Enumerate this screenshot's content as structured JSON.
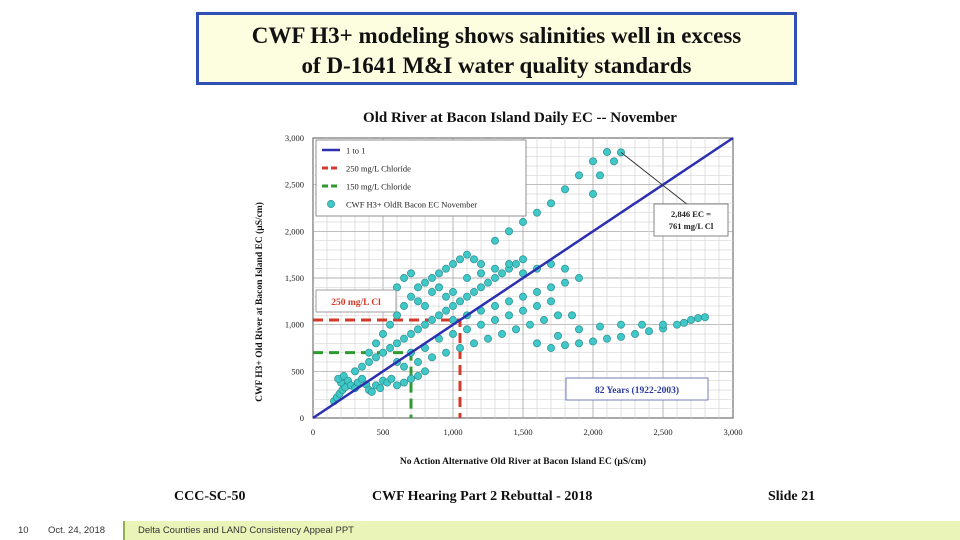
{
  "slide": {
    "title_line1": "CWF H3+ modeling shows salinities well in excess",
    "title_line2": "of D-1641 M&I water quality standards",
    "footer_left": "CCC-SC-50",
    "footer_center": "CWF Hearing Part 2 Rebuttal - 2018",
    "footer_right": "Slide 21",
    "page_number": "10",
    "date": "Oct. 24, 2018",
    "presentation": "Delta Counties and LAND Consistency Appeal PPT"
  },
  "colors": {
    "title_border": "#2f4fb4",
    "one_to_one": "#2b2fb0",
    "chloride_250": "#d43a2a",
    "chloride_150": "#2f9a2f",
    "points": "#40c8c8",
    "bar": "#eaf4b8"
  },
  "chart_data": {
    "type": "scatter",
    "title": "Old River at Bacon Island Daily EC -- November",
    "xlabel": "No Action Alternative Old River at Bacon Island EC (µS/cm)",
    "ylabel": "CWF H3+ Old River at Bacon Island EC (µS/cm)",
    "xlim": [
      0,
      3000
    ],
    "ylim": [
      0,
      3000
    ],
    "x_ticks": [
      "0",
      "500",
      "1,000",
      "1,500",
      "2,000",
      "2,500",
      "3,000"
    ],
    "y_ticks": [
      "0",
      "500",
      "1,000",
      "1,500",
      "2,000",
      "2,500",
      "3,000"
    ],
    "grid": true,
    "legend_position": "top-left",
    "legend": [
      "1 to 1",
      "250 mg/L Chloride",
      "150 mg/L Chloride",
      "CWF H3+ OldR Bacon EC November"
    ],
    "one_to_one": [
      [
        0,
        0
      ],
      [
        3000,
        3000
      ]
    ],
    "chloride_250_ec": 1050,
    "chloride_150_ec": 700,
    "annotations": {
      "label_250": "250 mg/L Cl",
      "callout": [
        "2,846 EC =",
        "761 mg/L Cl"
      ],
      "period": "82 Years (1922-2003)"
    },
    "points": [
      [
        150,
        180
      ],
      [
        170,
        220
      ],
      [
        190,
        260
      ],
      [
        210,
        300
      ],
      [
        230,
        330
      ],
      [
        200,
        380
      ],
      [
        180,
        420
      ],
      [
        220,
        450
      ],
      [
        250,
        400
      ],
      [
        270,
        350
      ],
      [
        300,
        320
      ],
      [
        320,
        380
      ],
      [
        350,
        420
      ],
      [
        380,
        360
      ],
      [
        400,
        300
      ],
      [
        420,
        280
      ],
      [
        450,
        350
      ],
      [
        480,
        320
      ],
      [
        500,
        400
      ],
      [
        530,
        380
      ],
      [
        560,
        420
      ],
      [
        600,
        350
      ],
      [
        650,
        380
      ],
      [
        700,
        420
      ],
      [
        750,
        450
      ],
      [
        800,
        500
      ],
      [
        300,
        500
      ],
      [
        350,
        550
      ],
      [
        400,
        600
      ],
      [
        450,
        650
      ],
      [
        500,
        700
      ],
      [
        550,
        750
      ],
      [
        600,
        800
      ],
      [
        650,
        850
      ],
      [
        700,
        900
      ],
      [
        750,
        950
      ],
      [
        800,
        1000
      ],
      [
        850,
        1050
      ],
      [
        900,
        1100
      ],
      [
        950,
        1150
      ],
      [
        1000,
        1200
      ],
      [
        1050,
        1250
      ],
      [
        1100,
        1300
      ],
      [
        1150,
        1350
      ],
      [
        1200,
        1400
      ],
      [
        1250,
        1450
      ],
      [
        1300,
        1500
      ],
      [
        1350,
        1550
      ],
      [
        1400,
        1600
      ],
      [
        1450,
        1650
      ],
      [
        1500,
        1700
      ],
      [
        400,
        700
      ],
      [
        450,
        800
      ],
      [
        500,
        900
      ],
      [
        550,
        1000
      ],
      [
        600,
        1100
      ],
      [
        650,
        1200
      ],
      [
        700,
        1300
      ],
      [
        750,
        1400
      ],
      [
        800,
        1450
      ],
      [
        850,
        1500
      ],
      [
        900,
        1550
      ],
      [
        950,
        1600
      ],
      [
        1000,
        1650
      ],
      [
        1050,
        1700
      ],
      [
        1100,
        1750
      ],
      [
        1150,
        1700
      ],
      [
        1200,
        1650
      ],
      [
        500,
        1300
      ],
      [
        550,
        1200
      ],
      [
        600,
        1400
      ],
      [
        650,
        1500
      ],
      [
        700,
        1550
      ],
      [
        750,
        1250
      ],
      [
        800,
        1200
      ],
      [
        850,
        1350
      ],
      [
        900,
        1400
      ],
      [
        950,
        1300
      ],
      [
        1000,
        1350
      ],
      [
        600,
        600
      ],
      [
        700,
        700
      ],
      [
        800,
        750
      ],
      [
        900,
        850
      ],
      [
        1000,
        900
      ],
      [
        1100,
        950
      ],
      [
        1200,
        1000
      ],
      [
        1300,
        1050
      ],
      [
        1400,
        1100
      ],
      [
        1500,
        1150
      ],
      [
        1600,
        1200
      ],
      [
        1700,
        1250
      ],
      [
        650,
        550
      ],
      [
        750,
        600
      ],
      [
        850,
        650
      ],
      [
        950,
        700
      ],
      [
        1050,
        750
      ],
      [
        1150,
        800
      ],
      [
        1250,
        850
      ],
      [
        1350,
        900
      ],
      [
        1450,
        950
      ],
      [
        1550,
        1000
      ],
      [
        1650,
        1050
      ],
      [
        1750,
        1100
      ],
      [
        1850,
        1100
      ],
      [
        1000,
        1050
      ],
      [
        1100,
        1100
      ],
      [
        1200,
        1150
      ],
      [
        1300,
        1200
      ],
      [
        1400,
        1250
      ],
      [
        1500,
        1300
      ],
      [
        1600,
        1350
      ],
      [
        1700,
        1400
      ],
      [
        1800,
        1450
      ],
      [
        1900,
        1500
      ],
      [
        1100,
        1500
      ],
      [
        1200,
        1550
      ],
      [
        1300,
        1600
      ],
      [
        1400,
        1650
      ],
      [
        1500,
        1550
      ],
      [
        1600,
        1600
      ],
      [
        1700,
        1650
      ],
      [
        1800,
        1600
      ],
      [
        1300,
        1900
      ],
      [
        1400,
        2000
      ],
      [
        1500,
        2100
      ],
      [
        1600,
        2200
      ],
      [
        1700,
        2300
      ],
      [
        1800,
        2450
      ],
      [
        1900,
        2600
      ],
      [
        2000,
        2750
      ],
      [
        2100,
        2850
      ],
      [
        2200,
        2846
      ],
      [
        2050,
        2600
      ],
      [
        2150,
        2750
      ],
      [
        2000,
        2400
      ],
      [
        1700,
        750
      ],
      [
        1800,
        780
      ],
      [
        1900,
        800
      ],
      [
        2000,
        820
      ],
      [
        2100,
        850
      ],
      [
        2200,
        870
      ],
      [
        2300,
        900
      ],
      [
        2400,
        930
      ],
      [
        2500,
        960
      ],
      [
        2600,
        1000
      ],
      [
        2700,
        1050
      ],
      [
        2800,
        1080
      ],
      [
        2750,
        1070
      ],
      [
        2650,
        1020
      ],
      [
        1600,
        800
      ],
      [
        1750,
        880
      ],
      [
        1900,
        950
      ],
      [
        2050,
        980
      ],
      [
        2200,
        1000
      ],
      [
        2350,
        1000
      ],
      [
        2500,
        1000
      ]
    ]
  }
}
